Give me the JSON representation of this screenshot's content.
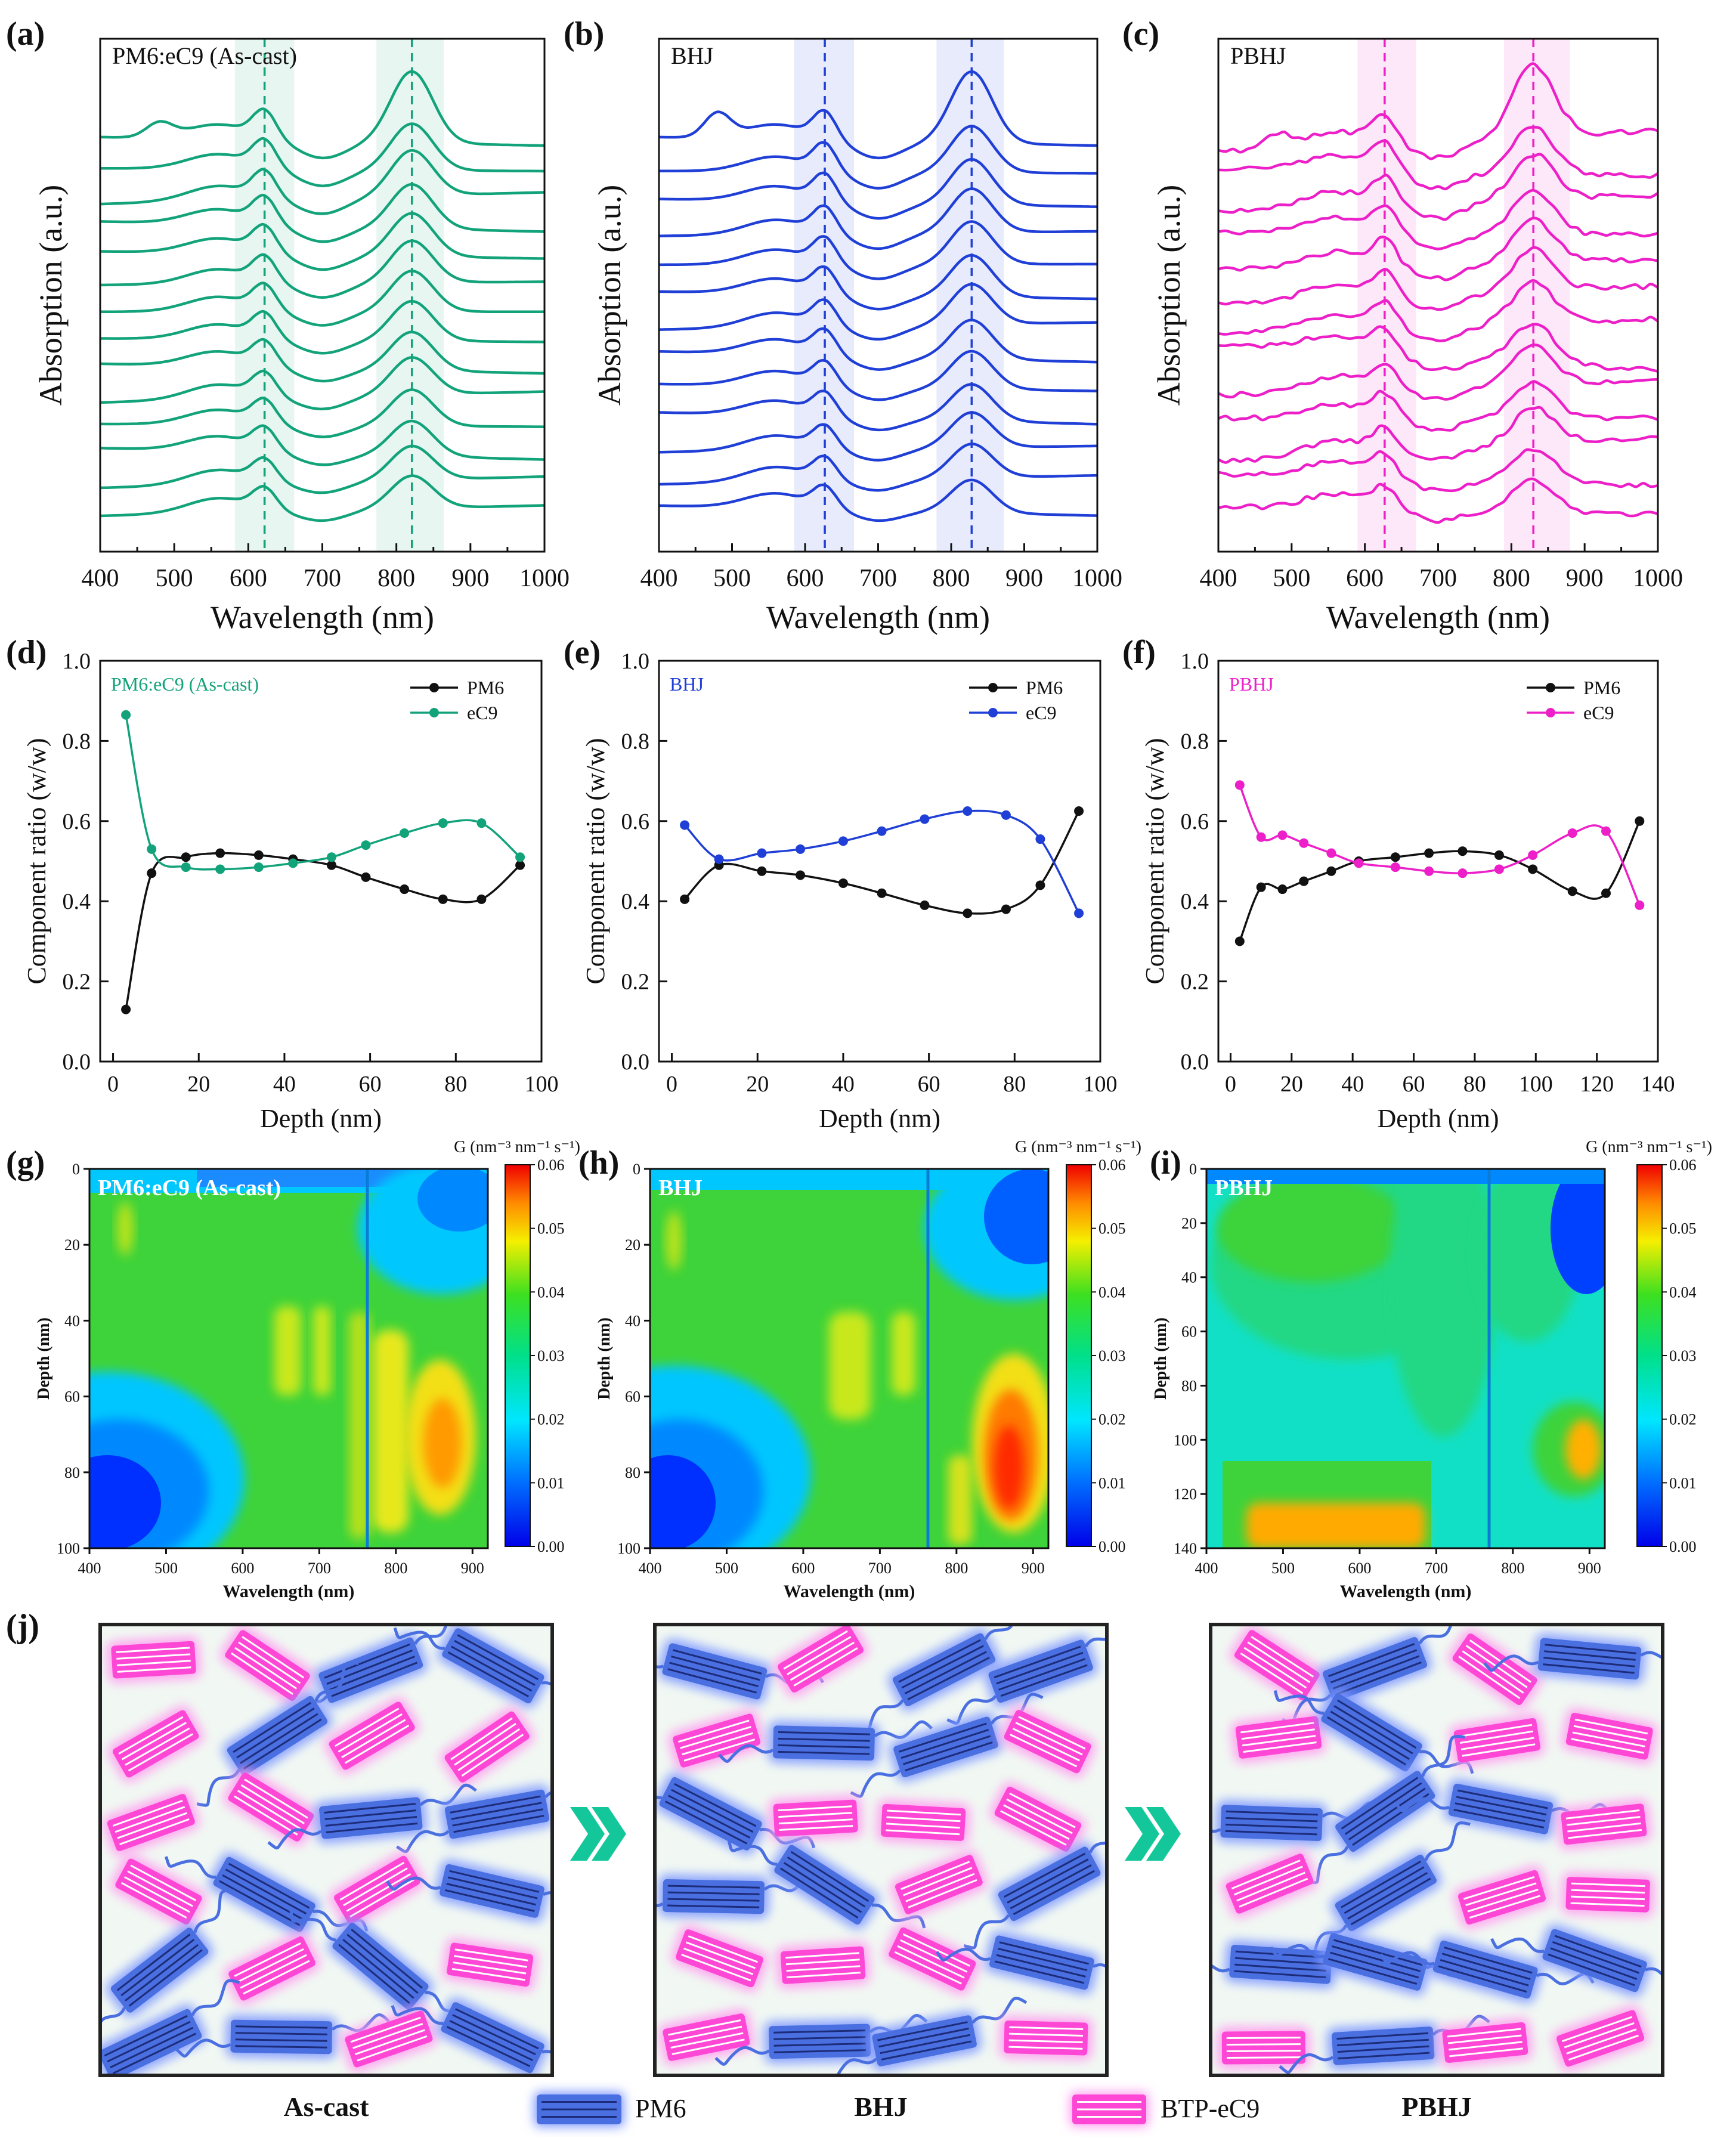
{
  "colors": {
    "green": "#13a37a",
    "blue": "#1f3fd6",
    "magenta": "#ec1fc8",
    "black": "#111111",
    "pm6_fill": "#4a6fe0",
    "pm6_glow": "#7f98ff",
    "ec9_fill": "#ff47d6",
    "ec9_glow": "#ff9ef0",
    "arrow": "#14c79a",
    "schematic_bg": "#f1f8f3"
  },
  "chart_data": [
    {
      "panel": "(a)",
      "type": "line",
      "inset_label": "PM6:eC9 (As-cast)",
      "color_key": "green",
      "xlabel": "Wavelength (nm)",
      "ylabel": "Absorption (a.u.)",
      "xlim": [
        400,
        1000
      ],
      "xticks": [
        "400",
        "500",
        "600",
        "700",
        "800",
        "900",
        "1000"
      ],
      "peaks": [
        622,
        821
      ],
      "bands": [
        [
          582,
          662
        ],
        [
          773,
          864
        ]
      ],
      "curve_count": 14,
      "note": "stacked absorption spectra at increasing film depth (top = surface)"
    },
    {
      "panel": "(b)",
      "type": "line",
      "inset_label": "BHJ",
      "color_key": "blue",
      "xlabel": "Wavelength (nm)",
      "ylabel": "Absorption (a.u.)",
      "xlim": [
        400,
        1000
      ],
      "xticks": [
        "400",
        "500",
        "600",
        "700",
        "800",
        "900",
        "1000"
      ],
      "peaks": [
        627,
        828
      ],
      "bands": [
        [
          585,
          667
        ],
        [
          780,
          872
        ]
      ],
      "curve_count": 13,
      "note": "stacked absorption spectra at increasing film depth (top = surface)"
    },
    {
      "panel": "(c)",
      "type": "line",
      "inset_label": "PBHJ",
      "color_key": "magenta",
      "xlabel": "Wavelength (nm)",
      "ylabel": "Absorption (a.u.)",
      "xlim": [
        400,
        1000
      ],
      "xticks": [
        "400",
        "500",
        "600",
        "700",
        "800",
        "900",
        "1000"
      ],
      "peaks": [
        627,
        830
      ],
      "bands": [
        [
          590,
          670
        ],
        [
          790,
          880
        ]
      ],
      "curve_count": 13,
      "note": "stacked absorption spectra at increasing film depth (top = surface)"
    },
    {
      "panel": "(d)",
      "type": "line",
      "inset_label": "PM6:eC9 (As-cast)",
      "color_key": "green",
      "xlabel": "Depth (nm)",
      "ylabel": "Component ratio (w/w)",
      "xlim": [
        -3,
        100
      ],
      "xticks": [
        0,
        20,
        40,
        60,
        80,
        100
      ],
      "ylim": [
        0.0,
        1.0
      ],
      "yticks": [
        "0.0",
        "0.2",
        "0.4",
        "0.6",
        "0.8",
        "1.0"
      ],
      "series": [
        {
          "name": "PM6",
          "x": [
            3,
            9,
            17,
            25,
            34,
            42,
            51,
            59,
            68,
            77,
            86,
            95
          ],
          "values": [
            0.13,
            0.47,
            0.51,
            0.52,
            0.515,
            0.505,
            0.49,
            0.46,
            0.43,
            0.405,
            0.405,
            0.49
          ]
        },
        {
          "name": "eC9",
          "x": [
            3,
            9,
            17,
            25,
            34,
            42,
            51,
            59,
            68,
            77,
            86,
            95
          ],
          "values": [
            0.865,
            0.53,
            0.485,
            0.48,
            0.485,
            0.495,
            0.51,
            0.54,
            0.57,
            0.595,
            0.595,
            0.51
          ]
        }
      ]
    },
    {
      "panel": "(e)",
      "type": "line",
      "inset_label": "BHJ",
      "color_key": "blue",
      "xlabel": "Depth (nm)",
      "ylabel": "Component ratio (w/w)",
      "xlim": [
        -3,
        100
      ],
      "xticks": [
        0,
        20,
        40,
        60,
        80,
        100
      ],
      "ylim": [
        0.0,
        1.0
      ],
      "yticks": [
        "0.0",
        "0.2",
        "0.4",
        "0.6",
        "0.8",
        "1.0"
      ],
      "series": [
        {
          "name": "PM6",
          "x": [
            3,
            11,
            21,
            30,
            40,
            49,
            59,
            69,
            78,
            86,
            95
          ],
          "values": [
            0.405,
            0.49,
            0.475,
            0.465,
            0.445,
            0.42,
            0.39,
            0.37,
            0.38,
            0.44,
            0.625
          ]
        },
        {
          "name": "eC9",
          "x": [
            3,
            11,
            21,
            30,
            40,
            49,
            59,
            69,
            78,
            86,
            95
          ],
          "values": [
            0.59,
            0.505,
            0.52,
            0.53,
            0.55,
            0.575,
            0.605,
            0.625,
            0.615,
            0.555,
            0.37
          ]
        }
      ]
    },
    {
      "panel": "(f)",
      "type": "line",
      "inset_label": "PBHJ",
      "color_key": "magenta",
      "xlabel": "Depth (nm)",
      "ylabel": "Component ratio (w/w)",
      "xlim": [
        -4,
        140
      ],
      "xticks": [
        0,
        20,
        40,
        60,
        80,
        100,
        120,
        140
      ],
      "ylim": [
        0.0,
        1.0
      ],
      "yticks": [
        "0.0",
        "0.2",
        "0.4",
        "0.6",
        "0.8",
        "1.0"
      ],
      "series": [
        {
          "name": "PM6",
          "x": [
            3,
            10,
            17,
            24,
            33,
            42,
            54,
            65,
            76,
            88,
            99,
            112,
            123,
            134
          ],
          "values": [
            0.3,
            0.435,
            0.43,
            0.45,
            0.475,
            0.5,
            0.51,
            0.52,
            0.525,
            0.515,
            0.48,
            0.425,
            0.42,
            0.6
          ]
        },
        {
          "name": "eC9",
          "x": [
            3,
            10,
            17,
            24,
            33,
            42,
            54,
            65,
            76,
            88,
            99,
            112,
            123,
            134
          ],
          "values": [
            0.69,
            0.56,
            0.565,
            0.545,
            0.52,
            0.495,
            0.485,
            0.475,
            0.47,
            0.48,
            0.515,
            0.57,
            0.575,
            0.39
          ]
        }
      ]
    },
    {
      "panel": "(g)",
      "type": "heatmap",
      "inset_label": "PM6:eC9 (As-cast)",
      "xlabel": "Wavelength (nm)",
      "ylabel": "Depth (nm)",
      "xlim": [
        400,
        920
      ],
      "xticks": [
        400,
        500,
        600,
        700,
        800,
        900
      ],
      "ylim": [
        0,
        100
      ],
      "yticks": [
        0,
        20,
        40,
        60,
        80,
        100
      ],
      "colorbar_title": "G (nm⁻³ nm⁻¹ s⁻¹)",
      "colorbar_range": [
        0.0,
        0.06
      ],
      "colorbar_ticks": [
        "0.06",
        "0.05",
        "0.04",
        "0.03",
        "0.02",
        "0.01",
        "0.00"
      ],
      "hotspot": {
        "wavelength": 855,
        "depth": 72,
        "value": 0.052
      }
    },
    {
      "panel": "(h)",
      "type": "heatmap",
      "inset_label": "BHJ",
      "xlabel": "Wavelength (nm)",
      "ylabel": "Depth (nm)",
      "xlim": [
        400,
        920
      ],
      "xticks": [
        400,
        500,
        600,
        700,
        800,
        900
      ],
      "ylim": [
        0,
        100
      ],
      "yticks": [
        0,
        20,
        40,
        60,
        80,
        100
      ],
      "colorbar_title": "G (nm⁻³ nm⁻¹ s⁻¹)",
      "colorbar_range": [
        0.0,
        0.06
      ],
      "colorbar_ticks": [
        "0.06",
        "0.05",
        "0.04",
        "0.03",
        "0.02",
        "0.01",
        "0.00"
      ],
      "hotspot": {
        "wavelength": 865,
        "depth": 78,
        "value": 0.057
      }
    },
    {
      "panel": "(i)",
      "type": "heatmap",
      "inset_label": "PBHJ",
      "xlabel": "Wavelength (nm)",
      "ylabel": "Depth (nm)",
      "xlim": [
        400,
        920
      ],
      "xticks": [
        400,
        500,
        600,
        700,
        800,
        900
      ],
      "ylim": [
        0,
        140
      ],
      "yticks": [
        0,
        20,
        40,
        60,
        80,
        100,
        120,
        140
      ],
      "colorbar_title": "G (nm⁻³ nm⁻¹ s⁻¹)",
      "colorbar_range": [
        0.0,
        0.06
      ],
      "colorbar_ticks": [
        "0.06",
        "0.05",
        "0.04",
        "0.03",
        "0.02",
        "0.01",
        "0.00"
      ],
      "hotspot": {
        "wavelength": 880,
        "depth": 105,
        "value": 0.045
      }
    }
  ],
  "schematic": {
    "panel": "(j)",
    "captions": [
      "As-cast",
      "BHJ",
      "PBHJ"
    ],
    "legend": [
      {
        "key": "pm6",
        "label": "PM6"
      },
      {
        "key": "ec9",
        "label": "BTP-eC9"
      }
    ]
  }
}
